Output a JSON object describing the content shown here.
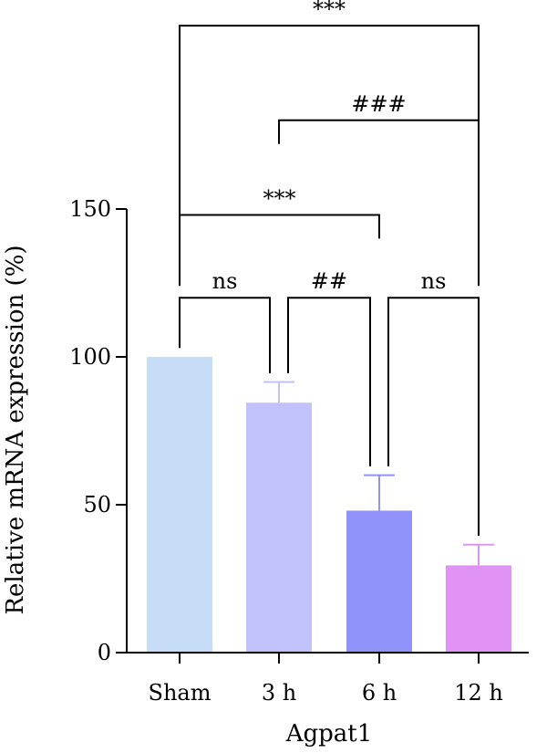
{
  "chart_data": {
    "type": "bar",
    "title": "",
    "xlabel": "Agpat1",
    "ylabel": "Relative mRNA expression (%)",
    "ylim": [
      0,
      150
    ],
    "yticks": [
      0,
      50,
      100,
      150
    ],
    "grid": false,
    "categories": [
      "Sham",
      "3 h",
      "6 h",
      "12 h"
    ],
    "values": [
      100,
      84.5,
      48,
      29.5
    ],
    "errors": [
      0,
      7,
      12,
      7
    ],
    "colors": [
      "#c6dcf7",
      "#c1c1fb",
      "#9292fb",
      "#e192f5"
    ],
    "significance": [
      {
        "from": 0,
        "to": 1,
        "label": "ns",
        "level": 120
      },
      {
        "from": 1,
        "to": 2,
        "label": "##",
        "level": 120
      },
      {
        "from": 2,
        "to": 3,
        "label": "ns",
        "level": 120
      },
      {
        "from": 0,
        "to": 2,
        "label": "***",
        "level": 148
      },
      {
        "from": 1,
        "to": 3,
        "label": "###",
        "level": 180
      },
      {
        "from": 0,
        "to": 3,
        "label": "***",
        "level": 212
      }
    ]
  }
}
